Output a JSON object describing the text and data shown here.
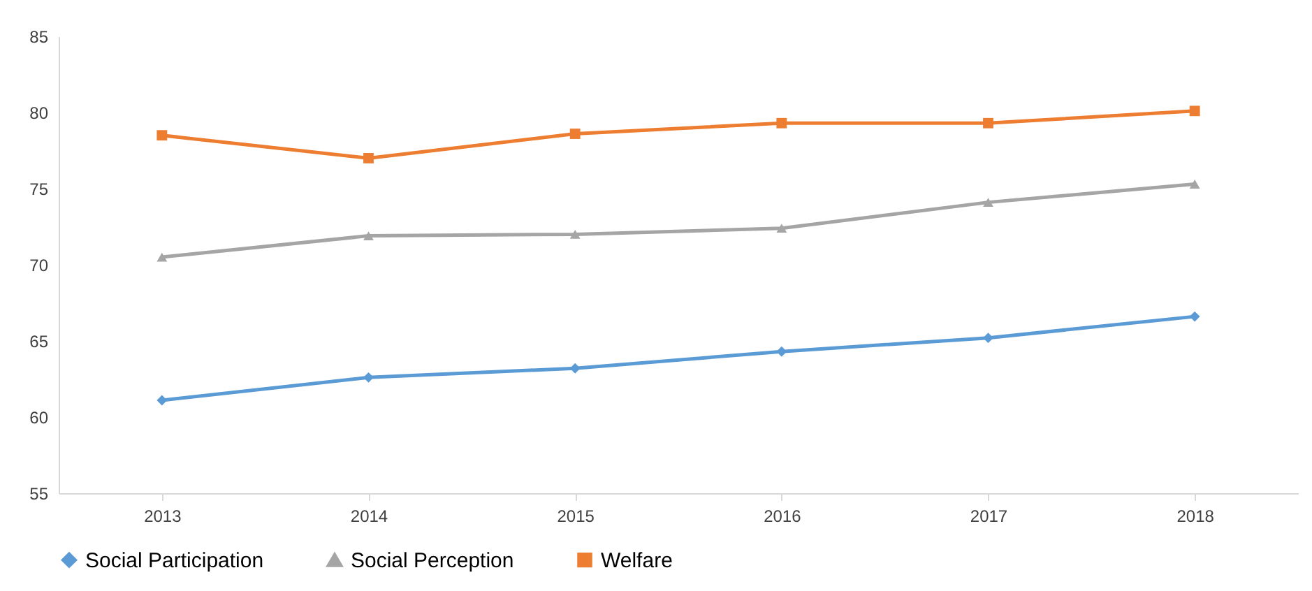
{
  "chart_data": {
    "type": "line",
    "categories": [
      "2013",
      "2014",
      "2015",
      "2016",
      "2017",
      "2018"
    ],
    "series": [
      {
        "name": "Social Participation",
        "color": "#5b9bd5",
        "marker": "diamond",
        "values": [
          61.1,
          62.6,
          63.2,
          64.3,
          65.2,
          66.6
        ]
      },
      {
        "name": "Social Perception",
        "color": "#a5a5a5",
        "marker": "triangle",
        "values": [
          70.5,
          71.9,
          72.0,
          72.4,
          74.1,
          75.3
        ]
      },
      {
        "name": "Welfare",
        "color": "#ed7d31",
        "marker": "square",
        "values": [
          78.5,
          77.0,
          78.6,
          79.3,
          79.3,
          80.1
        ]
      }
    ],
    "ylim": [
      55,
      85
    ],
    "yticks": [
      55,
      60,
      65,
      70,
      75,
      80,
      85
    ],
    "grid": false,
    "legend": "bottom",
    "line_style": "solid"
  }
}
